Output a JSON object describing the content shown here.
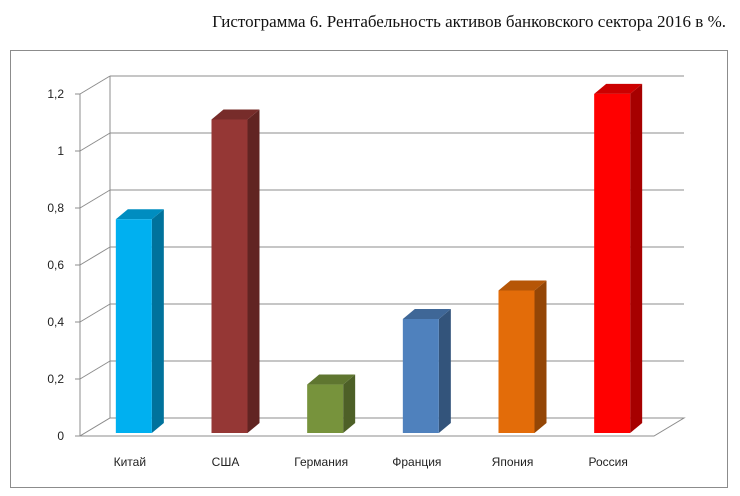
{
  "caption": "Гистограмма 6. Рентабельность активов банковского сектора 2016 в %.",
  "chart_data": {
    "type": "bar",
    "title": "Гистограмма 6. Рентабельность активов банковского сектора 2016 в %.",
    "categories": [
      "Китай",
      "США",
      "Германия",
      "Франция",
      "Япония",
      "Россия"
    ],
    "values": [
      0.75,
      1.1,
      0.17,
      0.4,
      0.5,
      1.19
    ],
    "colors": [
      "#00B0F0",
      "#953735",
      "#77933C",
      "#4F81BD",
      "#E36C09",
      "#FF0000"
    ],
    "ylim": [
      0,
      1.2
    ],
    "yticks": [
      "0",
      "0,2",
      "0,4",
      "0,6",
      "0,8",
      "1",
      "1,2"
    ],
    "grid": true,
    "legend": "none",
    "style": "3d-column"
  }
}
